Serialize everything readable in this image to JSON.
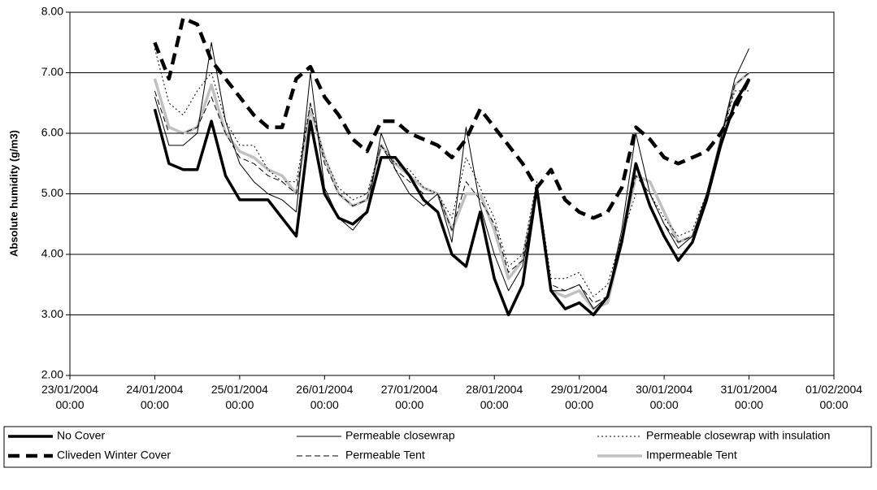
{
  "chart_data": {
    "type": "line",
    "y_label": "Absolute humidity (g/m3)",
    "x": [
      "24/01/2004 00:00",
      "24/01/2004 04:00",
      "24/01/2004 08:00",
      "24/01/2004 12:00",
      "24/01/2004 16:00",
      "24/01/2004 20:00",
      "25/01/2004 00:00",
      "25/01/2004 04:00",
      "25/01/2004 08:00",
      "25/01/2004 12:00",
      "25/01/2004 16:00",
      "25/01/2004 20:00",
      "26/01/2004 00:00",
      "26/01/2004 04:00",
      "26/01/2004 08:00",
      "26/01/2004 12:00",
      "26/01/2004 16:00",
      "26/01/2004 20:00",
      "27/01/2004 00:00",
      "27/01/2004 04:00",
      "27/01/2004 08:00",
      "27/01/2004 12:00",
      "27/01/2004 16:00",
      "27/01/2004 20:00",
      "28/01/2004 00:00",
      "28/01/2004 04:00",
      "28/01/2004 08:00",
      "28/01/2004 12:00",
      "28/01/2004 16:00",
      "28/01/2004 20:00",
      "29/01/2004 00:00",
      "29/01/2004 04:00",
      "29/01/2004 08:00",
      "29/01/2004 12:00",
      "29/01/2004 16:00",
      "29/01/2004 20:00",
      "30/01/2004 00:00",
      "30/01/2004 04:00",
      "30/01/2004 08:00",
      "30/01/2004 12:00",
      "30/01/2004 16:00",
      "30/01/2004 20:00",
      "31/01/2004 00:00"
    ],
    "series": [
      {
        "name": "No Cover",
        "color": "#000000",
        "weight": "heavy",
        "dash": "solid",
        "values": [
          6.4,
          5.5,
          5.4,
          5.4,
          6.2,
          5.3,
          4.9,
          4.9,
          4.9,
          4.6,
          4.3,
          6.2,
          5.0,
          4.6,
          4.5,
          4.7,
          5.6,
          5.6,
          5.3,
          4.9,
          4.7,
          4.0,
          3.8,
          4.7,
          3.6,
          3.0,
          3.5,
          5.1,
          3.4,
          3.1,
          3.2,
          3.0,
          3.3,
          4.2,
          5.5,
          4.8,
          4.3,
          3.9,
          4.2,
          4.9,
          5.8,
          6.5,
          6.9
        ]
      },
      {
        "name": "Permeable closewrap",
        "color": "#000000",
        "weight": "light",
        "dash": "solid",
        "values": [
          6.6,
          5.8,
          5.8,
          6.0,
          7.5,
          6.2,
          5.5,
          5.2,
          5.0,
          4.9,
          4.7,
          7.0,
          5.1,
          4.6,
          4.4,
          4.7,
          6.0,
          5.4,
          5.0,
          4.8,
          5.0,
          4.2,
          6.1,
          4.8,
          4.0,
          3.4,
          3.8,
          5.1,
          3.4,
          3.4,
          3.5,
          3.1,
          3.3,
          4.4,
          6.0,
          5.0,
          4.5,
          4.1,
          4.3,
          5.0,
          5.9,
          6.9,
          7.4
        ]
      },
      {
        "name": "Permeable closewrap with insulation",
        "color": "#000000",
        "weight": "light",
        "dash": "dotted",
        "values": [
          7.4,
          6.5,
          6.3,
          6.7,
          7.0,
          6.2,
          5.8,
          5.8,
          5.4,
          5.2,
          5.2,
          6.5,
          5.6,
          5.1,
          4.9,
          5.0,
          5.8,
          5.5,
          5.4,
          5.1,
          5.0,
          4.6,
          5.6,
          5.1,
          4.6,
          3.8,
          4.0,
          5.2,
          3.6,
          3.6,
          3.7,
          3.3,
          3.5,
          4.3,
          5.0,
          5.0,
          4.6,
          4.3,
          4.4,
          5.0,
          5.9,
          6.7,
          6.7
        ]
      },
      {
        "name": "Cliveden Winter Cover",
        "color": "#000000",
        "weight": "heavy",
        "dash": "dashed",
        "values": [
          7.5,
          6.9,
          7.9,
          7.8,
          7.2,
          6.9,
          6.6,
          6.3,
          6.1,
          6.1,
          6.9,
          7.1,
          6.6,
          6.3,
          5.9,
          5.7,
          6.2,
          6.2,
          6.0,
          5.9,
          5.8,
          5.6,
          5.9,
          6.4,
          6.1,
          5.8,
          5.5,
          5.1,
          5.4,
          4.9,
          4.7,
          4.6,
          4.7,
          5.1,
          6.1,
          5.9,
          5.6,
          5.5,
          5.6,
          5.7,
          6.0,
          6.4,
          6.9
        ]
      },
      {
        "name": "Permeable Tent",
        "color": "#000000",
        "weight": "light",
        "dash": "dashed",
        "values": [
          6.7,
          6.0,
          6.0,
          6.1,
          6.6,
          6.0,
          5.6,
          5.5,
          5.3,
          5.2,
          5.0,
          6.5,
          5.5,
          5.0,
          4.8,
          4.9,
          5.8,
          5.4,
          5.2,
          5.0,
          5.0,
          4.4,
          5.2,
          4.9,
          4.5,
          3.7,
          3.9,
          5.1,
          3.5,
          3.4,
          3.5,
          3.2,
          3.3,
          4.3,
          5.3,
          5.0,
          4.5,
          4.2,
          4.3,
          4.9,
          5.9,
          6.8,
          7.0
        ]
      },
      {
        "name": "Impermeable Tent",
        "color": "#c0c0c0",
        "weight": "heavy",
        "dash": "solid",
        "values": [
          6.9,
          6.1,
          6.0,
          6.1,
          6.8,
          6.0,
          5.7,
          5.6,
          5.4,
          5.3,
          5.0,
          6.4,
          5.6,
          5.0,
          4.8,
          4.9,
          5.8,
          5.5,
          5.3,
          5.1,
          5.0,
          4.4,
          5.0,
          5.0,
          4.4,
          3.6,
          3.9,
          5.1,
          3.4,
          3.3,
          3.4,
          3.1,
          3.2,
          4.2,
          5.3,
          5.2,
          4.7,
          4.2,
          4.3,
          4.9,
          5.9,
          6.8,
          7.0
        ]
      }
    ],
    "xlim": [
      "23/01/2004 00:00",
      "01/02/2004 00:00"
    ],
    "xticks": [
      "23/01/2004 00:00",
      "24/01/2004 00:00",
      "25/01/2004 00:00",
      "26/01/2004 00:00",
      "27/01/2004 00:00",
      "28/01/2004 00:00",
      "29/01/2004 00:00",
      "30/01/2004 00:00",
      "31/01/2004 00:00",
      "01/02/2004 00:00"
    ],
    "ylim": [
      2,
      8
    ],
    "yticks": [
      {
        "value": 2,
        "label": "2.00"
      },
      {
        "value": 3,
        "label": "3.00"
      },
      {
        "value": 4,
        "label": "4.00"
      },
      {
        "value": 5,
        "label": "5.00"
      },
      {
        "value": 6,
        "label": "6.00"
      },
      {
        "value": 7,
        "label": "7.00"
      },
      {
        "value": 8,
        "label": "8.00"
      }
    ],
    "grid": true,
    "legend": "bottom"
  }
}
